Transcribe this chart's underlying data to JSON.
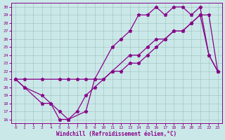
{
  "xlabel": "Windchill (Refroidissement éolien,°C)",
  "bg_color": "#cbe8e8",
  "line_color": "#880088",
  "xlim": [
    -0.5,
    23.5
  ],
  "ylim": [
    15.5,
    30.5
  ],
  "xticks": [
    0,
    1,
    2,
    3,
    4,
    5,
    6,
    7,
    8,
    9,
    10,
    11,
    12,
    13,
    14,
    15,
    16,
    17,
    18,
    19,
    20,
    21,
    22,
    23
  ],
  "yticks": [
    16,
    17,
    18,
    19,
    20,
    21,
    22,
    23,
    24,
    25,
    26,
    27,
    28,
    29,
    30
  ],
  "line1_x": [
    0,
    1,
    3,
    4,
    5,
    6,
    7,
    8,
    9,
    11,
    13,
    14,
    15,
    16,
    17,
    18,
    19,
    20,
    21,
    22,
    23
  ],
  "line1_y": [
    21,
    20,
    18,
    18,
    16,
    16,
    17,
    19,
    20,
    22,
    24,
    24,
    25,
    26,
    26,
    27,
    27,
    28,
    29,
    24,
    22
  ],
  "line2_x": [
    0,
    1,
    3,
    5,
    6,
    7,
    8,
    9,
    10,
    11,
    12,
    13,
    14,
    15,
    16,
    17,
    18,
    19,
    20,
    21,
    22,
    23
  ],
  "line2_y": [
    21,
    21,
    21,
    21,
    21,
    21,
    21,
    21,
    21,
    22,
    22,
    23,
    23,
    24,
    25,
    26,
    27,
    27,
    28,
    29,
    29,
    22
  ],
  "line3_x": [
    0,
    1,
    3,
    4,
    5,
    6,
    8,
    9,
    11,
    12,
    13,
    14,
    15,
    16,
    17,
    18,
    19,
    20,
    21,
    22,
    23
  ],
  "line3_y": [
    21,
    20,
    19,
    18,
    17,
    16,
    17,
    21,
    25,
    26,
    27,
    29,
    29,
    30,
    29,
    30,
    30,
    29,
    30,
    24,
    22
  ]
}
